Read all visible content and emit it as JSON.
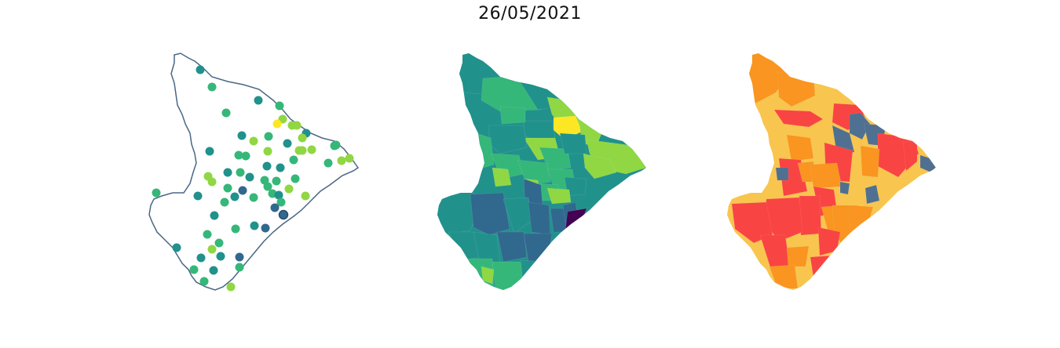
{
  "title": "26/05/2021",
  "colors": {
    "outline": "#4a6785",
    "viridis": [
      "#440154",
      "#31688e",
      "#21918c",
      "#35b779",
      "#90d743",
      "#fde725"
    ],
    "risk": [
      "#f99520",
      "#f8c54e",
      "#f94444",
      "#4f7090"
    ]
  },
  "panels": [
    {
      "name": "point-map",
      "kind": "points"
    },
    {
      "name": "viridis-choropleth",
      "kind": "choropleth"
    },
    {
      "name": "risk-choropleth",
      "kind": "choropleth"
    }
  ]
}
